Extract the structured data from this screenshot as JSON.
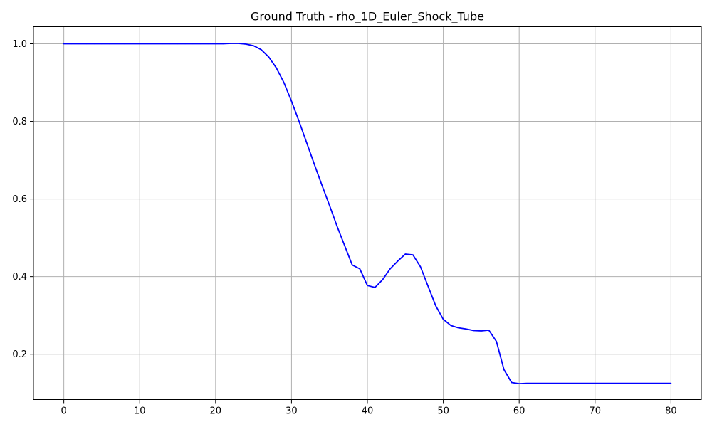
{
  "chart_data": {
    "type": "line",
    "title": "Ground Truth - rho_1D_Euler_Shock_Tube",
    "xlabel": "",
    "ylabel": "",
    "xlim": [
      -4,
      84
    ],
    "ylim": [
      0.083,
      1.044
    ],
    "grid": true,
    "x_ticks": [
      0,
      10,
      20,
      30,
      40,
      50,
      60,
      70,
      80
    ],
    "y_ticks": [
      0.2,
      0.4,
      0.6,
      0.8,
      1.0
    ],
    "x_tick_labels": [
      "0",
      "10",
      "20",
      "30",
      "40",
      "50",
      "60",
      "70",
      "80"
    ],
    "y_tick_labels": [
      "0.2",
      "0.4",
      "0.6",
      "0.8",
      "1.0"
    ],
    "series": [
      {
        "color": "#0000ff",
        "x": [
          0,
          1,
          2,
          3,
          4,
          5,
          6,
          7,
          8,
          9,
          10,
          11,
          12,
          13,
          14,
          15,
          16,
          17,
          18,
          19,
          20,
          21,
          22,
          23,
          24,
          25,
          26,
          27,
          28,
          29,
          30,
          31,
          32,
          33,
          34,
          35,
          36,
          37,
          38,
          39,
          40,
          41,
          42,
          43,
          44,
          45,
          46,
          47,
          48,
          49,
          50,
          51,
          52,
          53,
          54,
          55,
          56,
          57,
          58,
          59,
          60,
          61,
          62,
          63,
          64,
          65,
          66,
          67,
          68,
          69,
          70,
          71,
          72,
          73,
          74,
          75,
          76,
          77,
          78,
          79,
          80
        ],
        "y": [
          1.0,
          1.0,
          1.0,
          1.0,
          1.0,
          1.0,
          1.0,
          1.0,
          1.0,
          1.0,
          1.0,
          1.0,
          1.0,
          1.0,
          1.0,
          1.0,
          1.0,
          1.0,
          1.0,
          1.0,
          1.0,
          1.0,
          1.001,
          1.001,
          0.999,
          0.995,
          0.985,
          0.966,
          0.938,
          0.9,
          0.852,
          0.8,
          0.745,
          0.69,
          0.636,
          0.584,
          0.53,
          0.48,
          0.43,
          0.42,
          0.377,
          0.372,
          0.392,
          0.42,
          0.44,
          0.458,
          0.456,
          0.425,
          0.375,
          0.325,
          0.29,
          0.274,
          0.268,
          0.265,
          0.261,
          0.26,
          0.262,
          0.233,
          0.16,
          0.127,
          0.124,
          0.125,
          0.125,
          0.125,
          0.125,
          0.125,
          0.125,
          0.125,
          0.125,
          0.125,
          0.125,
          0.125,
          0.125,
          0.125,
          0.125,
          0.125,
          0.125,
          0.125,
          0.125,
          0.125,
          0.125
        ]
      }
    ]
  }
}
